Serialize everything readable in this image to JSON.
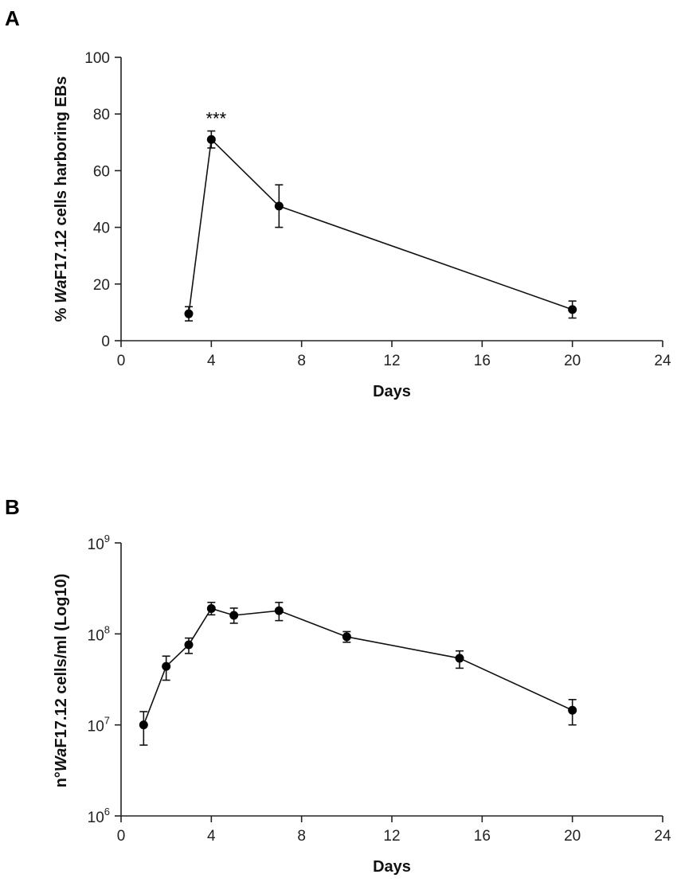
{
  "chart_data": [
    {
      "panel": "A",
      "type": "line",
      "xlabel": "Days",
      "ylabel_parts": [
        "% ",
        "Wa",
        "F17.12 cells harboring EBs"
      ],
      "xlim": [
        0,
        24
      ],
      "ylim": [
        0,
        100
      ],
      "xticks": [
        "0",
        "4",
        "8",
        "12",
        "16",
        "20",
        "24"
      ],
      "yticks": [
        "0",
        "20",
        "40",
        "60",
        "80",
        "100"
      ],
      "series": [
        {
          "name": "% cells harboring EBs",
          "x": [
            3,
            4,
            7,
            20
          ],
          "y": [
            9.5,
            71,
            47.5,
            11
          ],
          "err": [
            2.5,
            3,
            7.5,
            3
          ]
        }
      ],
      "annotation": {
        "text": "***",
        "x": 4
      }
    },
    {
      "panel": "B",
      "type": "line",
      "yscale": "log10",
      "xlabel": "Days",
      "ylabel_parts": [
        "n°",
        "Wa",
        "F17.12 cells/ml (Log10)"
      ],
      "xlim": [
        0,
        24
      ],
      "ylim": [
        1000000,
        1000000000
      ],
      "xticks": [
        "0",
        "4",
        "8",
        "12",
        "16",
        "20",
        "24"
      ],
      "yticks": [
        {
          "base": "10",
          "exp": "6"
        },
        {
          "base": "10",
          "exp": "7"
        },
        {
          "base": "10",
          "exp": "8"
        },
        {
          "base": "10",
          "exp": "9"
        }
      ],
      "series": [
        {
          "name": "cells/ml",
          "x": [
            1,
            2,
            3,
            4,
            5,
            7,
            10,
            15,
            20
          ],
          "y": [
            10000000,
            44000000,
            76000000,
            190000000,
            160000000,
            180000000,
            93000000,
            54000000,
            14500000
          ],
          "err_low": [
            6000000,
            31000000,
            61000000,
            162000000,
            131000000,
            140000000,
            81000000,
            42000000,
            10000000
          ],
          "err_high": [
            14000000,
            57000000,
            90000000,
            222000000,
            192000000,
            222000000,
            106000000,
            65000000,
            19000000
          ]
        }
      ]
    }
  ]
}
